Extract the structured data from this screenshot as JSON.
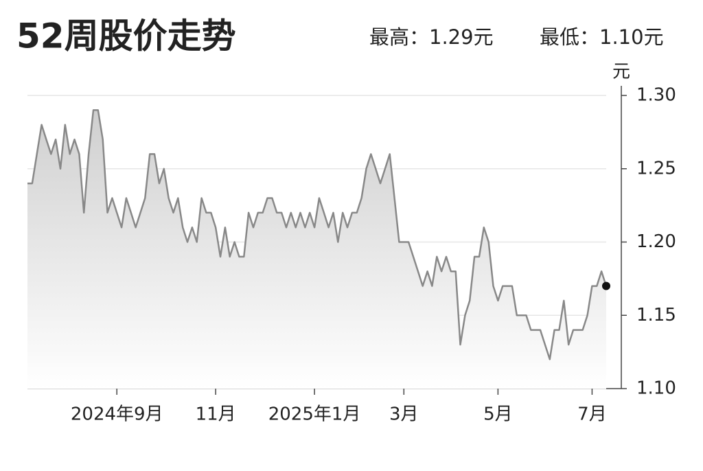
{
  "chart_data": {
    "type": "line",
    "title": "52周股价走势",
    "high_label": "最高：1.29元",
    "low_label": "最低：1.10元",
    "y_unit": "元",
    "color": "#888888",
    "grid": true,
    "ylim": [
      1.1,
      1.3
    ],
    "yticks": [
      {
        "value": 1.1,
        "label": "1.10"
      },
      1.15,
      {
        "value": 1.2,
        "label": "1.20"
      },
      1.25,
      {
        "value": 1.3,
        "label": "1.30"
      }
    ],
    "categories": [
      null,
      null,
      null,
      null,
      null,
      null,
      null,
      null,
      null,
      null,
      null,
      null,
      null,
      null,
      null,
      null,
      null,
      null,
      null,
      "2024年9月",
      null,
      null,
      null,
      null,
      null,
      null,
      null,
      null,
      null,
      null,
      null,
      null,
      null,
      null,
      null,
      null,
      null,
      null,
      null,
      null,
      "11月",
      null,
      null,
      null,
      null,
      null,
      null,
      null,
      null,
      null,
      null,
      null,
      null,
      null,
      null,
      null,
      null,
      null,
      null,
      null,
      null,
      "2025年1月",
      null,
      null,
      null,
      null,
      null,
      null,
      null,
      null,
      null,
      null,
      null,
      null,
      null,
      null,
      null,
      null,
      null,
      null,
      "3月",
      null,
      null,
      null,
      null,
      null,
      null,
      null,
      null,
      null,
      null,
      null,
      null,
      null,
      null,
      null,
      null,
      null,
      null,
      null,
      "5月",
      null,
      null,
      null,
      null,
      null,
      null,
      null,
      null,
      null,
      null,
      null,
      null,
      null,
      null,
      null,
      null,
      null,
      null,
      null,
      "7月",
      null,
      null,
      null
    ],
    "values": [
      1.24,
      1.24,
      1.26,
      1.28,
      1.27,
      1.26,
      1.27,
      1.25,
      1.28,
      1.26,
      1.27,
      1.26,
      1.22,
      1.26,
      1.29,
      1.29,
      1.27,
      1.22,
      1.23,
      1.22,
      1.21,
      1.23,
      1.22,
      1.21,
      1.22,
      1.23,
      1.26,
      1.26,
      1.24,
      1.25,
      1.23,
      1.22,
      1.23,
      1.21,
      1.2,
      1.21,
      1.2,
      1.23,
      1.22,
      1.22,
      1.21,
      1.19,
      1.21,
      1.19,
      1.2,
      1.19,
      1.19,
      1.22,
      1.21,
      1.22,
      1.22,
      1.23,
      1.23,
      1.22,
      1.22,
      1.21,
      1.22,
      1.21,
      1.22,
      1.21,
      1.22,
      1.21,
      1.23,
      1.22,
      1.21,
      1.22,
      1.2,
      1.22,
      1.21,
      1.22,
      1.22,
      1.23,
      1.25,
      1.26,
      1.25,
      1.24,
      1.25,
      1.26,
      1.23,
      1.2,
      1.2,
      1.2,
      1.19,
      1.18,
      1.17,
      1.18,
      1.17,
      1.19,
      1.18,
      1.19,
      1.18,
      1.18,
      1.13,
      1.15,
      1.16,
      1.19,
      1.19,
      1.21,
      1.2,
      1.17,
      1.16,
      1.17,
      1.17,
      1.17,
      1.15,
      1.15,
      1.15,
      1.14,
      1.14,
      1.14,
      1.13,
      1.12,
      1.14,
      1.14,
      1.16,
      1.13,
      1.14,
      1.14,
      1.14,
      1.15,
      1.17,
      1.17,
      1.18,
      1.17
    ]
  }
}
